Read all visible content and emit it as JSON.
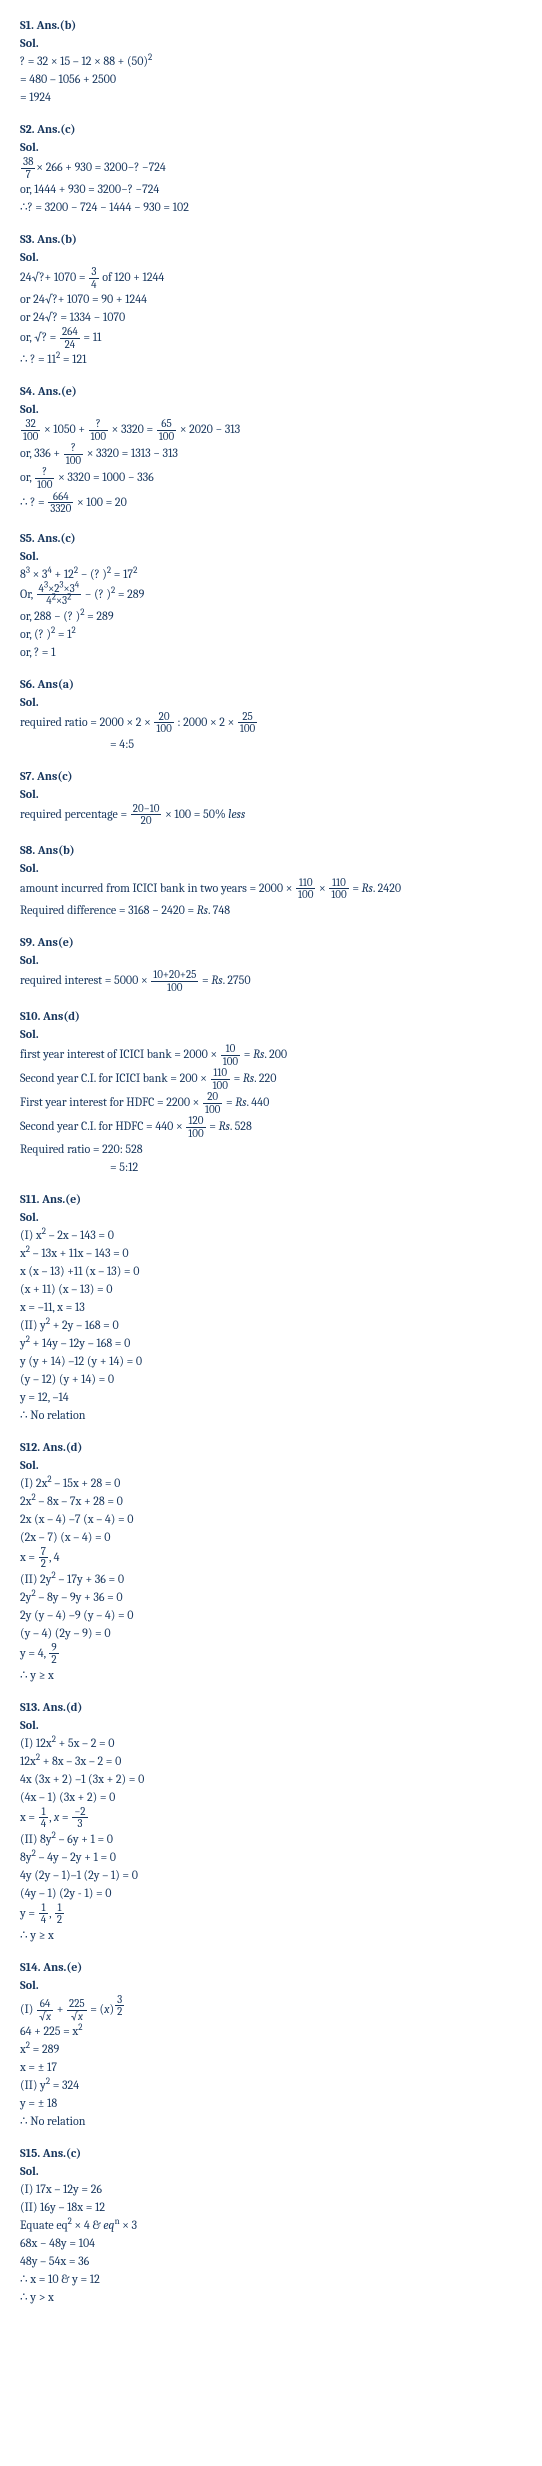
{
  "solutions": [
    {
      "id": "s1",
      "header": "S1. Ans.(b)",
      "sol": "Sol.",
      "lines": [
        "? = 32 × 15 – 12 × 88 + (50)<sup>2</sup>",
        "= 480 – 1056 + 2500",
        "= 1924"
      ]
    },
    {
      "id": "s2",
      "header": "S2. Ans.(c)",
      "sol": "Sol.",
      "lines": [
        "<span class='frac'><span class='num'>38</span><span class='den'>7</span></span>× 266 + 930 = 3200−? −724",
        "or, 1444 + 930 = 3200−? −724",
        "∴? = 3200 − 724 − 1444 − 930 = 102"
      ]
    },
    {
      "id": "s3",
      "header": "S3. Ans.(b)",
      "sol": "Sol.",
      "lines": [
        "24<span class='sqrt'>?</span>+ 1070 = <span class='frac'><span class='num'>3</span><span class='den'>4</span></span> of 120 + 1244",
        "or 24<span class='sqrt'>?</span>+ 1070 = 90 + 1244",
        "or 24<span class='sqrt'>?</span> = 1334 − 1070",
        "or, <span class='sqrt'>?</span> = <span class='frac'><span class='num'>264</span><span class='den'>24</span></span> = 11",
        "∴ ? = 11<sup>2</sup> = 121"
      ]
    },
    {
      "id": "s4",
      "header": "S4. Ans.(e)",
      "sol": "Sol.",
      "lines": [
        "<span class='frac'><span class='num'>32</span><span class='den'>100</span></span> × 1050 + <span class='frac'><span class='num'>?</span><span class='den'>100</span></span> × 3320 = <span class='frac'><span class='num'>65</span><span class='den'>100</span></span> × 2020 − 313",
        "or, 336 + <span class='frac'><span class='num'>?</span><span class='den'>100</span></span> × 3320 = 1313 − 313",
        "or, <span class='frac'><span class='num'>?</span><span class='den'>100</span></span> × 3320 = 1000 − 336",
        "∴ ? = <span class='frac'><span class='num'>664</span><span class='den'>3320</span></span> × 100 = 20"
      ]
    },
    {
      "id": "s5",
      "header": "S5. Ans.(c)",
      "sol": "Sol.",
      "lines": [
        "8<sup>3</sup> × 3<sup>4</sup> + 12<sup>2</sup> − (? )<sup>2</sup> = 17<sup>2</sup>",
        "Or, <span class='frac'><span class='num'>4<sup>3</sup>×2<sup>3</sup>×3<sup>4</sup></span><span class='den'>4<sup>2</sup>×3<sup>2</sup></span></span> − (? )<sup>2</sup> = 289",
        "or, 288 − (? )<sup>2</sup> = 289",
        "or, (? )<sup>2</sup> = 1<sup>2</sup>",
        "or, ? = 1"
      ]
    },
    {
      "id": "s6",
      "header": "S6. Ans(a)",
      "sol": "Sol.",
      "lines": [
        "required ratio = 2000 × 2 × <span class='frac'><span class='num'>20</span><span class='den'>100</span></span> : 2000 × 2 × <span class='frac'><span class='num'>25</span><span class='den'>100</span></span>",
        "<span class='indent'>= 4:5</span>"
      ]
    },
    {
      "id": "s7",
      "header": "S7. Ans(c)",
      "sol": "Sol.",
      "lines": [
        "required percentage = <span class='frac'><span class='num'>20−10</span><span class='den'>20</span></span> × 100 = 50% <i>less</i>"
      ]
    },
    {
      "id": "s8",
      "header": "S8. Ans(b)",
      "sol": "Sol.",
      "lines": [
        "amount incurred from ICICI bank in two years = 2000 × <span class='frac'><span class='num'>110</span><span class='den'>100</span></span> × <span class='frac'><span class='num'>110</span><span class='den'>100</span></span> = <i>Rs</i>. 2420",
        "Required difference = 3168 − 2420 = <i>Rs</i>. 748"
      ]
    },
    {
      "id": "s9",
      "header": "S9. Ans(e)",
      "sol": "Sol.",
      "lines": [
        "required interest = 5000 × <span class='frac'><span class='num'>10+20+25</span><span class='den'>100</span></span> = <i>Rs</i>. 2750"
      ]
    },
    {
      "id": "s10",
      "header": "S10. Ans(d)",
      "sol": "Sol.",
      "lines": [
        "first year interest of ICICI bank = 2000 × <span class='frac'><span class='num'>10</span><span class='den'>100</span></span> = <i>Rs</i>. 200",
        "Second year C.I. for ICICI bank = 200 × <span class='frac'><span class='num'>110</span><span class='den'>100</span></span> = <i>Rs</i>. 220",
        "First year interest for HDFC = 2200 × <span class='frac'><span class='num'>20</span><span class='den'>100</span></span> = <i>Rs</i>. 440",
        "Second year C.I. for HDFC = 440 × <span class='frac'><span class='num'>120</span><span class='den'>100</span></span> = <i>Rs</i>. 528",
        "Required ratio = 220: 528",
        "<span class='indent'>= 5:12</span>"
      ]
    },
    {
      "id": "s11",
      "header": "S11. Ans.(e)",
      "sol": "Sol.",
      "lines": [
        "(I) x<sup>2</sup> – 2x – 143 = 0",
        "x<sup>2</sup> – 13x + 11x – 143 = 0",
        "x (x – 13) +11 (x – 13) = 0",
        "(x + 11) (x – 13) = 0",
        "x = –11, x = 13",
        "(II) y<sup>2</sup> + 2y – 168 = 0",
        "y<sup>2</sup> + 14y – 12y – 168 = 0",
        "y (y + 14) –12 (y + 14) = 0",
        "(y – 12) (y + 14) = 0",
        "y = 12, –14",
        "∴ No relation"
      ]
    },
    {
      "id": "s12",
      "header": "S12. Ans.(d)",
      "sol": "Sol.",
      "lines": [
        "(I) 2x<sup>2</sup> – 15x + 28 = 0",
        "2x<sup>2</sup> – 8x – 7x + 28 = 0",
        "2x (x – 4) –7 (x – 4) = 0",
        "(2x – 7) (x – 4) = 0",
        "x = <span class='frac'><span class='num'>7</span><span class='den'>2</span></span>, 4",
        "(II) 2y<sup>2</sup> – 17y + 36 = 0",
        "2y<sup>2</sup> – 8y – 9y + 36 = 0",
        "2y (y – 4) –9 (y – 4) = 0",
        "(y – 4) (2y – 9) = 0",
        "y = 4, <span class='frac'><span class='num'>9</span><span class='den'>2</span></span>",
        "∴ y ≥ x"
      ]
    },
    {
      "id": "s13",
      "header": "S13. Ans.(d)",
      "sol": "Sol.",
      "lines": [
        "(I) 12x<sup>2</sup> + 5x – 2 = 0",
        "12x<sup>2</sup> + 8x – 3x – 2 = 0",
        "4x (3x + 2) –1 (3x + 2) = 0",
        "(4x – 1) (3x + 2) = 0",
        "x = <span class='frac'><span class='num'>1</span><span class='den'>4</span></span>, <i>x</i> = <span class='frac'><span class='num'>−2</span><span class='den'>3</span></span>",
        "(II) 8y<sup>2</sup> – 6y + 1 = 0",
        "8y<sup>2</sup> – 4y – 2y + 1 = 0",
        "4y (2y – 1)–1 (2y – 1) = 0",
        "(4y – 1) (2y - 1) = 0",
        "y = <span class='frac'><span class='num'>1</span><span class='den'>4</span></span>, <span class='frac'><span class='num'>1</span><span class='den'>2</span></span>",
        "∴ y ≥ x"
      ]
    },
    {
      "id": "s14",
      "header": "S14. Ans.(e)",
      "sol": "Sol.",
      "lines": [
        "(I) <span class='frac'><span class='num'>64</span><span class='den'>√<i>x</i></span></span> + <span class='frac'><span class='num'>225</span><span class='den'>√<i>x</i></span></span> = (<i>x</i>)<sup><span class='frac'><span class='num'>3</span><span class='den'>2</span></span></sup>",
        "64 + 225 = x<sup>2</sup>",
        "x<sup>2</sup> = 289",
        "x = ± 17",
        "(II) y<sup>2</sup> = 324",
        "y = ± 18",
        "∴ No relation"
      ]
    },
    {
      "id": "s15",
      "header": "S15. Ans.(c)",
      "sol": "Sol.",
      "lines": [
        "(I) 17x – 12y = 26",
        "(II) 16y – 18x = 12",
        "Equate eq<sup>2</sup> × 4 &amp; <i>eq</i><sup>n</sup> × 3",
        "68x − 48y = 104",
        "48y – 54x = 36",
        "∴ x = 10 &amp; y = 12",
        "∴ y > x"
      ]
    }
  ]
}
